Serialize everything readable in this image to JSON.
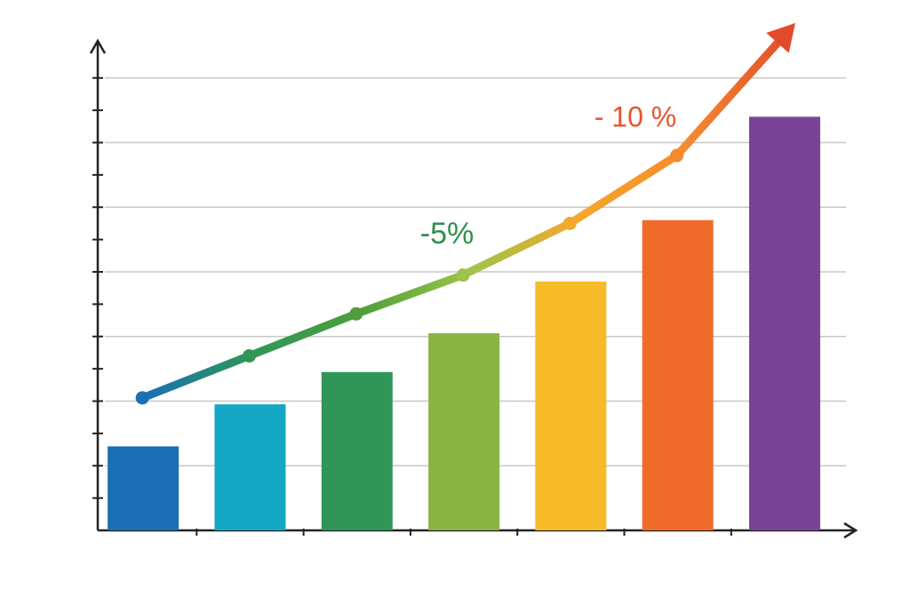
{
  "chart_data": {
    "type": "bar",
    "categories": [
      null,
      null,
      null,
      null,
      null,
      null,
      null
    ],
    "values": [
      2.6,
      3.9,
      4.9,
      6.1,
      7.7,
      9.6,
      12.8
    ],
    "colors": [
      "#1a6fb5",
      "#14a8c4",
      "#2f9658",
      "#8ab542",
      "#f7bb2a",
      "#ef6b2c",
      "#7a4496"
    ],
    "trend": {
      "values": [
        4.1,
        5.4,
        6.7,
        7.9,
        9.5,
        11.6,
        15.7
      ],
      "colors": [
        "#1a6fb5",
        "#2f9658",
        "#4e9e3c",
        "#9cc44a",
        "#f5a82b",
        "#f58a2e",
        "#e24a2b"
      ]
    },
    "ylim": [
      0,
      16
    ],
    "yticks": [
      1,
      2,
      3,
      4,
      5,
      6,
      7,
      8,
      9,
      10,
      11,
      12,
      13,
      14
    ],
    "grid": true,
    "annotations": [
      {
        "text": "-5%",
        "color": "#2f8f4e"
      },
      {
        "text": "- 10 %",
        "color": "#e8552b"
      }
    ]
  }
}
